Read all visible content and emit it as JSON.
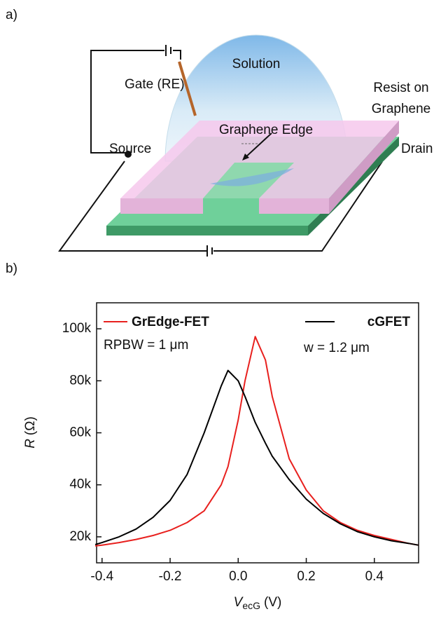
{
  "diagram": {
    "panel_label": "a)",
    "labels": {
      "solution": "Solution",
      "gate": "Gate (RE)",
      "resist": [
        "Resist on",
        "Graphene"
      ],
      "edge": "Graphene Edge",
      "source": "Source",
      "drain": "Drain"
    }
  },
  "chart_data": {
    "type": "line",
    "panel_label": "b)",
    "x_label": {
      "symbol": "V",
      "subscript": "ecG",
      "unit": "(V)"
    },
    "y_label": {
      "symbol": "R",
      "unit": "(Ω)"
    },
    "annotations": [
      "RPBW = 1 μm",
      "w = 1.2 μm"
    ],
    "x": [
      -0.42,
      -0.4,
      -0.35,
      -0.3,
      -0.25,
      -0.2,
      -0.15,
      -0.1,
      -0.05,
      -0.03,
      0,
      0.02,
      0.05,
      0.08,
      0.1,
      0.15,
      0.2,
      0.25,
      0.3,
      0.35,
      0.4,
      0.45,
      0.5,
      0.53
    ],
    "series": [
      {
        "name": "GrEdge-FET",
        "color": "#e8201e",
        "values": [
          16500,
          16800,
          17800,
          19000,
          20500,
          22500,
          25500,
          30000,
          40000,
          47000,
          65000,
          80000,
          97000,
          88000,
          74000,
          50000,
          38000,
          30000,
          25500,
          22500,
          20500,
          19000,
          17500,
          16800
        ]
      },
      {
        "name": "cGFET",
        "color": "#000000",
        "values": [
          17000,
          17800,
          20000,
          23000,
          27500,
          34000,
          44000,
          60000,
          78000,
          84000,
          80000,
          74000,
          64000,
          56000,
          51000,
          42000,
          34500,
          29000,
          25000,
          22000,
          20000,
          18500,
          17500,
          16800
        ]
      }
    ],
    "xlim": [
      -0.416,
      0.53
    ],
    "xticks": [
      -0.4,
      -0.2,
      {
        "value": 0,
        "label": "0.0"
      },
      0.2,
      0.4
    ],
    "ylim": [
      10000,
      110000
    ],
    "yticks": [
      {
        "value": 20000,
        "label": "20k"
      },
      {
        "value": 40000,
        "label": "40k"
      },
      {
        "value": 60000,
        "label": "60k"
      },
      {
        "value": 80000,
        "label": "80k"
      },
      {
        "value": 100000,
        "label": "100k"
      }
    ]
  }
}
